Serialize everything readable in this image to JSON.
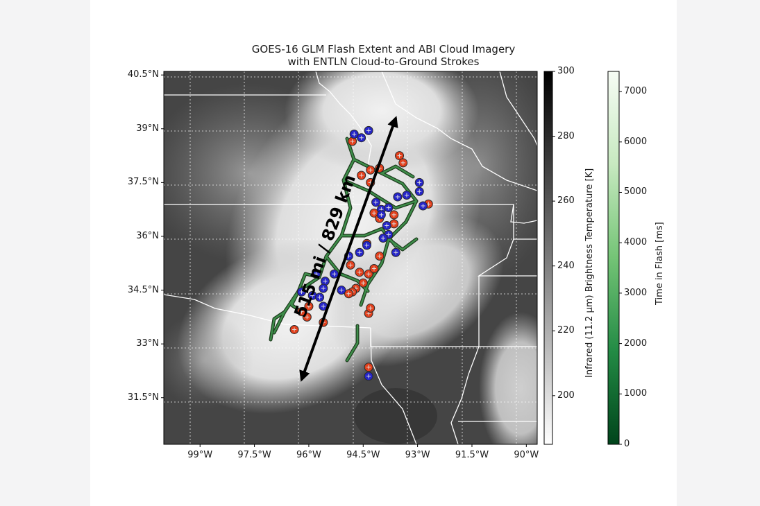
{
  "figure": {
    "title_line1": "GOES-16 GLM Flash Extent and ABI Cloud Imagery",
    "title_line2": "with ENTLN Cloud-to-Ground Strokes"
  },
  "chart_data": {
    "type": "map",
    "title": "GOES-16 GLM Flash Extent and ABI Cloud Imagery with ENTLN Cloud-to-Ground Strokes",
    "lon_range": [
      -100.0,
      -89.7
    ],
    "lat_range": [
      30.2,
      40.6
    ],
    "lon_ticks": [
      -99,
      -97.5,
      -96,
      -94.5,
      -93,
      -91.5,
      -90
    ],
    "lon_tick_labels": [
      "99°W",
      "97.5°W",
      "96°W",
      "94.5°W",
      "93°W",
      "91.5°W",
      "90°W"
    ],
    "lat_ticks": [
      40.5,
      39,
      37.5,
      36,
      34.5,
      33,
      31.5
    ],
    "lat_tick_labels": [
      "40.5°N",
      "39°N",
      "37.5°N",
      "36°N",
      "34.5°N",
      "33°N",
      "31.5°N"
    ],
    "grid": true,
    "annotation": {
      "text": "515 mi / 829 km",
      "arrow_from": [
        -96.2,
        32.0
      ],
      "arrow_to": [
        -93.6,
        39.3
      ]
    },
    "colorbars": [
      {
        "label": "Infrared (11.2 µm) Brightness Temperature [K]",
        "range": [
          185,
          300
        ],
        "ticks": [
          300,
          280,
          260,
          240,
          220,
          200
        ],
        "tick_labels": [
          "300",
          "280",
          "260",
          "240",
          "220",
          "200"
        ],
        "colormap": "greys",
        "color_low": "#ffffff",
        "color_high": "#000000"
      },
      {
        "label": "Time in Flash [ms]",
        "range": [
          0,
          7400
        ],
        "ticks": [
          7000,
          6000,
          5000,
          4000,
          3000,
          2000,
          1000,
          0
        ],
        "tick_labels": [
          "7000",
          "6000",
          "5000",
          "4000",
          "3000",
          "2000",
          "1000",
          "0"
        ],
        "colormap": "greens",
        "color_low": "#00441b",
        "color_high": "#f7fcf5"
      }
    ],
    "strokes_red_lonlat": [
      [
        -94.8,
        38.65
      ],
      [
        -93.5,
        38.25
      ],
      [
        -93.4,
        38.05
      ],
      [
        -94.3,
        37.85
      ],
      [
        -94.05,
        37.9
      ],
      [
        -94.55,
        37.7
      ],
      [
        -94.3,
        37.5
      ],
      [
        -94.2,
        36.65
      ],
      [
        -94.05,
        36.5
      ],
      [
        -93.65,
        36.6
      ],
      [
        -93.65,
        36.35
      ],
      [
        -92.7,
        36.9
      ],
      [
        -94.4,
        35.8
      ],
      [
        -94.05,
        35.45
      ],
      [
        -94.85,
        35.2
      ],
      [
        -94.6,
        35.0
      ],
      [
        -94.35,
        34.95
      ],
      [
        -94.5,
        34.7
      ],
      [
        -94.7,
        34.55
      ],
      [
        -94.8,
        34.45
      ],
      [
        -94.9,
        34.4
      ],
      [
        -95.6,
        33.6
      ],
      [
        -94.35,
        33.85
      ],
      [
        -94.3,
        34.0
      ],
      [
        -96.0,
        34.05
      ],
      [
        -96.05,
        33.75
      ],
      [
        -96.2,
        33.9
      ],
      [
        -96.4,
        33.4
      ],
      [
        -94.35,
        32.35
      ],
      [
        -94.2,
        35.1
      ]
    ],
    "strokes_blue_lonlat": [
      [
        -94.75,
        38.85
      ],
      [
        -94.55,
        38.75
      ],
      [
        -94.35,
        38.95
      ],
      [
        -92.95,
        37.5
      ],
      [
        -93.3,
        37.15
      ],
      [
        -93.55,
        37.1
      ],
      [
        -92.95,
        37.25
      ],
      [
        -92.85,
        36.85
      ],
      [
        -94.15,
        36.95
      ],
      [
        -94.0,
        36.75
      ],
      [
        -93.8,
        36.8
      ],
      [
        -94.0,
        36.6
      ],
      [
        -93.85,
        36.3
      ],
      [
        -93.8,
        36.05
      ],
      [
        -93.95,
        35.95
      ],
      [
        -94.4,
        35.75
      ],
      [
        -94.6,
        35.55
      ],
      [
        -94.9,
        35.45
      ],
      [
        -93.6,
        35.55
      ],
      [
        -95.8,
        34.95
      ],
      [
        -95.55,
        34.75
      ],
      [
        -95.3,
        34.95
      ],
      [
        -95.6,
        34.55
      ],
      [
        -96.2,
        34.45
      ],
      [
        -95.9,
        34.35
      ],
      [
        -95.7,
        34.3
      ],
      [
        -95.1,
        34.5
      ],
      [
        -95.6,
        34.05
      ],
      [
        -94.35,
        32.1
      ]
    ]
  }
}
